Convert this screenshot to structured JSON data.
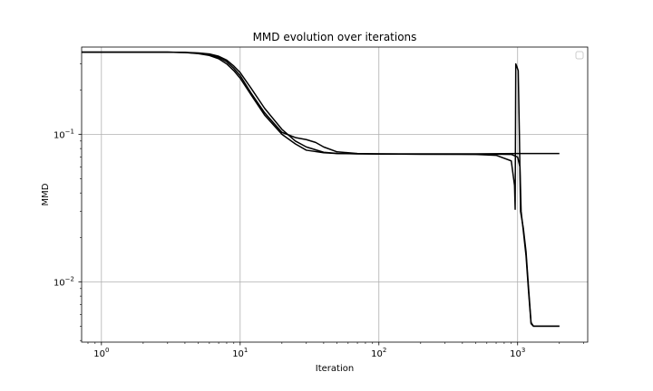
{
  "chart_data": {
    "type": "line",
    "title": "MMD evolution over iterations",
    "xlabel": "Iteration",
    "ylabel": "MMD",
    "xscale": "log",
    "yscale": "log",
    "xlim": [
      0.72,
      3200
    ],
    "ylim": [
      0.0039,
      0.39
    ],
    "grid": true,
    "legend": "top-right, empty",
    "line_color": "#000000",
    "x_ticks": [
      {
        "value": 1,
        "base": "10",
        "exp": "0"
      },
      {
        "value": 10,
        "base": "10",
        "exp": "1"
      },
      {
        "value": 100,
        "base": "10",
        "exp": "2"
      },
      {
        "value": 1000,
        "base": "10",
        "exp": "3"
      }
    ],
    "y_ticks": [
      {
        "value": 0.01,
        "base": "10",
        "exp": "−2"
      },
      {
        "value": 0.1,
        "base": "10",
        "exp": "−1"
      }
    ],
    "series": [
      {
        "x": [
          0.72,
          1,
          2,
          3,
          4,
          5,
          6,
          7,
          8,
          9,
          10,
          12,
          15,
          20,
          25,
          30,
          40,
          50,
          70,
          100,
          200,
          500,
          1000,
          2000
        ],
        "y": [
          0.36,
          0.36,
          0.36,
          0.36,
          0.358,
          0.352,
          0.342,
          0.325,
          0.3,
          0.27,
          0.24,
          0.185,
          0.135,
          0.1,
          0.086,
          0.078,
          0.075,
          0.074,
          0.0738,
          0.0736,
          0.0736,
          0.0736,
          0.074,
          0.074
        ]
      },
      {
        "x": [
          0.72,
          1,
          2,
          3,
          4,
          5,
          6,
          7,
          8,
          9,
          10,
          12,
          15,
          20,
          25,
          30,
          35,
          40,
          50,
          70,
          100,
          200,
          500,
          700,
          900,
          950,
          960,
          970,
          990,
          1010,
          1030,
          1050,
          1100,
          1150,
          1200,
          1250,
          1300,
          1500,
          2000
        ],
        "y": [
          0.36,
          0.36,
          0.36,
          0.36,
          0.358,
          0.354,
          0.346,
          0.332,
          0.31,
          0.28,
          0.25,
          0.19,
          0.14,
          0.103,
          0.095,
          0.092,
          0.088,
          0.082,
          0.076,
          0.074,
          0.0735,
          0.0733,
          0.073,
          0.072,
          0.066,
          0.045,
          0.031,
          0.3,
          0.285,
          0.27,
          0.1,
          0.03,
          0.023,
          0.016,
          0.009,
          0.0053,
          0.005,
          0.005,
          0.005
        ]
      },
      {
        "x": [
          0.72,
          1,
          2,
          3,
          4,
          5,
          6,
          7,
          8,
          9,
          10,
          12,
          15,
          20,
          25,
          30,
          40,
          50,
          70,
          100,
          200,
          500,
          700,
          900,
          1000,
          1040,
          1060,
          1100,
          1150,
          1200,
          1250,
          1300,
          1500,
          2000
        ],
        "y": [
          0.36,
          0.36,
          0.36,
          0.36,
          0.359,
          0.356,
          0.35,
          0.338,
          0.318,
          0.29,
          0.262,
          0.205,
          0.15,
          0.108,
          0.09,
          0.082,
          0.0755,
          0.0742,
          0.0737,
          0.0735,
          0.0733,
          0.0732,
          0.0732,
          0.073,
          0.07,
          0.06,
          0.03,
          0.022,
          0.015,
          0.0085,
          0.0052,
          0.005,
          0.005,
          0.005
        ]
      }
    ]
  }
}
